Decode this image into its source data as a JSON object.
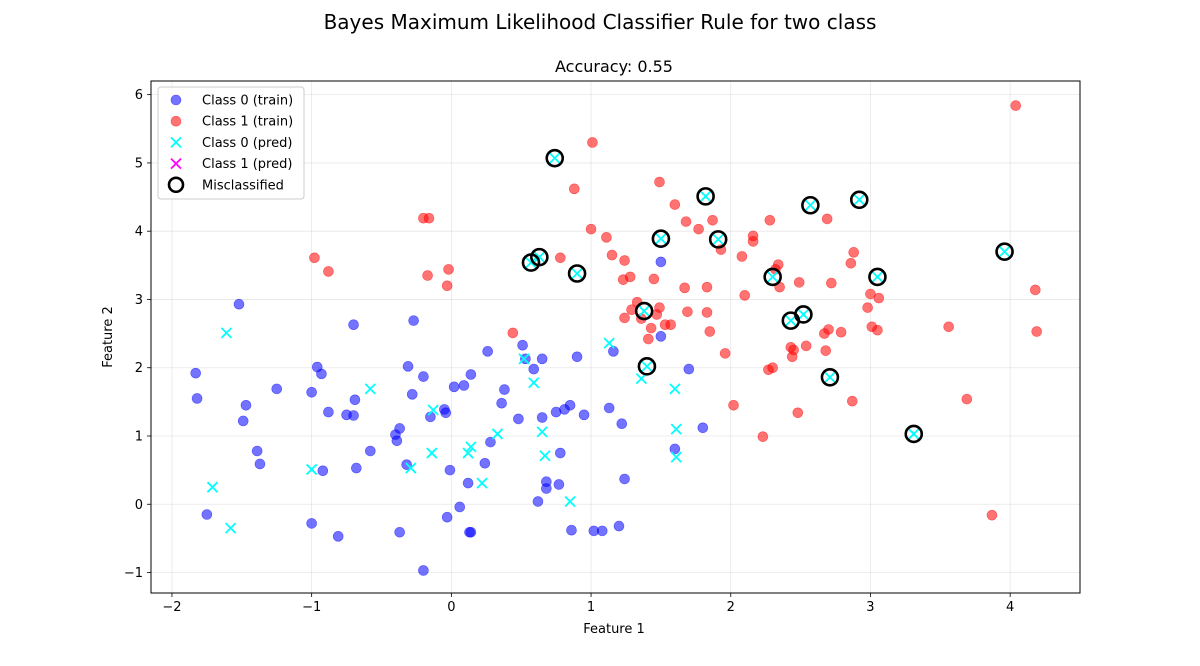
{
  "figure": {
    "suptitle": "Bayes Maximum Likelihood Classifier Rule for two class"
  },
  "chart_data": {
    "type": "scatter",
    "title": "Accuracy: 0.55",
    "xlabel": "Feature 1",
    "ylabel": "Feature 2",
    "xlim": [
      -2.15,
      4.5
    ],
    "ylim": [
      -1.3,
      6.2
    ],
    "xticks": [
      -2,
      -1,
      0,
      1,
      2,
      3,
      4
    ],
    "yticks": [
      -1,
      0,
      1,
      2,
      3,
      4,
      5,
      6
    ],
    "xtick_labels": [
      "−2",
      "−1",
      "0",
      "1",
      "2",
      "3",
      "4"
    ],
    "ytick_labels": [
      "−1",
      "0",
      "1",
      "2",
      "3",
      "4",
      "5",
      "6"
    ],
    "grid": true,
    "legend_position": "top-left",
    "colors": {
      "class0_train": "#0000ff",
      "class1_train": "#ff0000",
      "class0_pred": "#00ffff",
      "class1_pred": "#ff00ff",
      "misclassified": "#000000"
    },
    "series": [
      {
        "name": "Class 0 (train)",
        "marker": "circle",
        "color": "#0000ff",
        "points": [
          [
            -1.83,
            1.92
          ],
          [
            -1.82,
            1.55
          ],
          [
            -1.75,
            -0.15
          ],
          [
            -1.52,
            2.93
          ],
          [
            -1.49,
            1.22
          ],
          [
            -1.47,
            1.45
          ],
          [
            -1.39,
            0.78
          ],
          [
            -1.37,
            0.59
          ],
          [
            -1.25,
            1.69
          ],
          [
            -1.0,
            1.64
          ],
          [
            -1.0,
            -0.28
          ],
          [
            -0.96,
            2.01
          ],
          [
            -0.93,
            1.91
          ],
          [
            -0.92,
            0.49
          ],
          [
            -0.88,
            1.35
          ],
          [
            -0.81,
            -0.47
          ],
          [
            -0.75,
            1.31
          ],
          [
            -0.7,
            2.63
          ],
          [
            -0.7,
            1.3
          ],
          [
            -0.69,
            1.53
          ],
          [
            -0.68,
            0.53
          ],
          [
            -0.58,
            0.78
          ],
          [
            -0.4,
            1.02
          ],
          [
            -0.39,
            0.93
          ],
          [
            -0.37,
            1.11
          ],
          [
            -0.37,
            -0.41
          ],
          [
            -0.32,
            0.58
          ],
          [
            -0.31,
            2.02
          ],
          [
            -0.28,
            1.61
          ],
          [
            -0.27,
            2.69
          ],
          [
            -0.2,
            1.87
          ],
          [
            -0.2,
            -0.97
          ],
          [
            -0.15,
            1.28
          ],
          [
            -0.05,
            1.39
          ],
          [
            -0.04,
            1.34
          ],
          [
            -0.03,
            -0.19
          ],
          [
            -0.01,
            0.5
          ],
          [
            0.02,
            1.72
          ],
          [
            0.06,
            -0.04
          ],
          [
            0.09,
            1.74
          ],
          [
            0.12,
            0.31
          ],
          [
            0.13,
            -0.41
          ],
          [
            0.14,
            -0.41
          ],
          [
            0.14,
            1.9
          ],
          [
            0.24,
            0.6
          ],
          [
            0.26,
            2.24
          ],
          [
            0.28,
            0.91
          ],
          [
            0.36,
            1.48
          ],
          [
            0.38,
            1.68
          ],
          [
            0.48,
            1.25
          ],
          [
            0.51,
            2.33
          ],
          [
            0.53,
            2.13
          ],
          [
            0.59,
            1.98
          ],
          [
            0.62,
            0.04
          ],
          [
            0.65,
            1.27
          ],
          [
            0.65,
            2.13
          ],
          [
            0.68,
            0.33
          ],
          [
            0.68,
            0.23
          ],
          [
            0.75,
            1.35
          ],
          [
            0.77,
            0.29
          ],
          [
            0.78,
            0.75
          ],
          [
            0.81,
            1.39
          ],
          [
            0.85,
            1.45
          ],
          [
            0.86,
            -0.38
          ],
          [
            0.9,
            2.16
          ],
          [
            0.95,
            1.31
          ],
          [
            1.02,
            -0.39
          ],
          [
            1.08,
            -0.39
          ],
          [
            1.13,
            1.41
          ],
          [
            1.16,
            2.24
          ],
          [
            1.2,
            -0.32
          ],
          [
            1.22,
            1.18
          ],
          [
            1.24,
            0.37
          ],
          [
            1.5,
            3.55
          ],
          [
            1.5,
            2.46
          ],
          [
            1.6,
            0.81
          ],
          [
            1.7,
            1.98
          ],
          [
            1.8,
            1.12
          ]
        ]
      },
      {
        "name": "Class 1 (train)",
        "marker": "circle",
        "color": "#ff0000",
        "points": [
          [
            -0.98,
            3.61
          ],
          [
            -0.88,
            3.41
          ],
          [
            -0.2,
            4.19
          ],
          [
            -0.16,
            4.19
          ],
          [
            -0.17,
            3.35
          ],
          [
            -0.03,
            3.2
          ],
          [
            -0.02,
            3.44
          ],
          [
            0.44,
            2.51
          ],
          [
            0.78,
            3.61
          ],
          [
            0.88,
            4.62
          ],
          [
            1.01,
            5.3
          ],
          [
            1.0,
            4.03
          ],
          [
            1.11,
            3.91
          ],
          [
            1.15,
            3.65
          ],
          [
            1.23,
            3.29
          ],
          [
            1.24,
            3.57
          ],
          [
            1.24,
            2.73
          ],
          [
            1.28,
            3.33
          ],
          [
            1.29,
            2.85
          ],
          [
            1.33,
            2.96
          ],
          [
            1.36,
            2.72
          ],
          [
            1.41,
            2.42
          ],
          [
            1.43,
            2.58
          ],
          [
            1.45,
            3.3
          ],
          [
            1.47,
            2.78
          ],
          [
            1.49,
            2.88
          ],
          [
            1.49,
            4.72
          ],
          [
            1.53,
            2.63
          ],
          [
            1.57,
            2.63
          ],
          [
            1.6,
            4.39
          ],
          [
            1.67,
            3.17
          ],
          [
            1.68,
            4.14
          ],
          [
            1.69,
            2.82
          ],
          [
            1.77,
            4.03
          ],
          [
            1.83,
            3.18
          ],
          [
            1.83,
            2.81
          ],
          [
            1.85,
            2.53
          ],
          [
            1.87,
            4.16
          ],
          [
            1.93,
            3.73
          ],
          [
            1.96,
            2.21
          ],
          [
            2.02,
            1.45
          ],
          [
            2.08,
            3.63
          ],
          [
            2.1,
            3.06
          ],
          [
            2.16,
            3.85
          ],
          [
            2.16,
            3.93
          ],
          [
            2.23,
            0.99
          ],
          [
            2.27,
            1.97
          ],
          [
            2.28,
            4.16
          ],
          [
            2.3,
            2.0
          ],
          [
            2.32,
            3.44
          ],
          [
            2.34,
            3.51
          ],
          [
            2.35,
            3.18
          ],
          [
            2.43,
            2.3
          ],
          [
            2.44,
            2.16
          ],
          [
            2.45,
            2.26
          ],
          [
            2.48,
            1.34
          ],
          [
            2.49,
            3.25
          ],
          [
            2.54,
            2.32
          ],
          [
            2.67,
            2.5
          ],
          [
            2.68,
            2.25
          ],
          [
            2.69,
            4.18
          ],
          [
            2.7,
            2.56
          ],
          [
            2.72,
            3.24
          ],
          [
            2.79,
            2.52
          ],
          [
            2.86,
            3.53
          ],
          [
            2.87,
            1.51
          ],
          [
            2.88,
            3.69
          ],
          [
            2.98,
            2.88
          ],
          [
            3.0,
            3.08
          ],
          [
            3.01,
            2.6
          ],
          [
            3.05,
            2.55
          ],
          [
            3.06,
            3.02
          ],
          [
            3.56,
            2.6
          ],
          [
            3.69,
            1.54
          ],
          [
            3.87,
            -0.16
          ],
          [
            4.04,
            5.84
          ],
          [
            4.18,
            3.14
          ],
          [
            4.19,
            2.53
          ]
        ]
      },
      {
        "name": "Class 0 (pred)",
        "marker": "x",
        "color": "#00ffff",
        "points": [
          [
            -1.71,
            0.25
          ],
          [
            -1.61,
            2.51
          ],
          [
            -1.58,
            -0.35
          ],
          [
            -1.0,
            0.51
          ],
          [
            -0.58,
            1.69
          ],
          [
            -0.29,
            0.53
          ],
          [
            -0.14,
            0.75
          ],
          [
            -0.13,
            1.38
          ],
          [
            0.12,
            0.75
          ],
          [
            0.14,
            0.84
          ],
          [
            0.22,
            0.31
          ],
          [
            0.33,
            1.03
          ],
          [
            0.52,
            2.13
          ],
          [
            0.59,
            1.78
          ],
          [
            0.65,
            1.06
          ],
          [
            0.67,
            0.71
          ],
          [
            0.74,
            5.07
          ],
          [
            0.57,
            3.54
          ],
          [
            0.63,
            3.62
          ],
          [
            0.85,
            0.04
          ],
          [
            0.9,
            3.38
          ],
          [
            1.13,
            2.36
          ],
          [
            1.36,
            1.84
          ],
          [
            1.38,
            2.83
          ],
          [
            1.4,
            2.02
          ],
          [
            1.5,
            3.89
          ],
          [
            1.6,
            1.69
          ],
          [
            1.61,
            1.1
          ],
          [
            1.61,
            0.69
          ],
          [
            1.82,
            4.51
          ],
          [
            1.91,
            3.88
          ],
          [
            2.3,
            3.33
          ],
          [
            2.43,
            2.69
          ],
          [
            2.52,
            2.78
          ],
          [
            2.57,
            4.38
          ],
          [
            2.71,
            1.86
          ],
          [
            2.92,
            4.46
          ],
          [
            3.05,
            3.33
          ],
          [
            3.31,
            1.03
          ],
          [
            3.96,
            3.7
          ]
        ]
      },
      {
        "name": "Class 1 (pred)",
        "marker": "x",
        "color": "#ff00ff",
        "points": []
      },
      {
        "name": "Misclassified",
        "marker": "ring",
        "color": "#000000",
        "points": [
          [
            0.74,
            5.07
          ],
          [
            0.57,
            3.54
          ],
          [
            0.63,
            3.62
          ],
          [
            0.9,
            3.38
          ],
          [
            1.38,
            2.83
          ],
          [
            1.4,
            2.02
          ],
          [
            1.5,
            3.89
          ],
          [
            1.82,
            4.51
          ],
          [
            1.91,
            3.88
          ],
          [
            2.3,
            3.33
          ],
          [
            2.43,
            2.69
          ],
          [
            2.52,
            2.78
          ],
          [
            2.57,
            4.38
          ],
          [
            2.71,
            1.86
          ],
          [
            2.92,
            4.46
          ],
          [
            3.05,
            3.33
          ],
          [
            3.31,
            1.03
          ],
          [
            3.96,
            3.7
          ]
        ]
      }
    ]
  }
}
